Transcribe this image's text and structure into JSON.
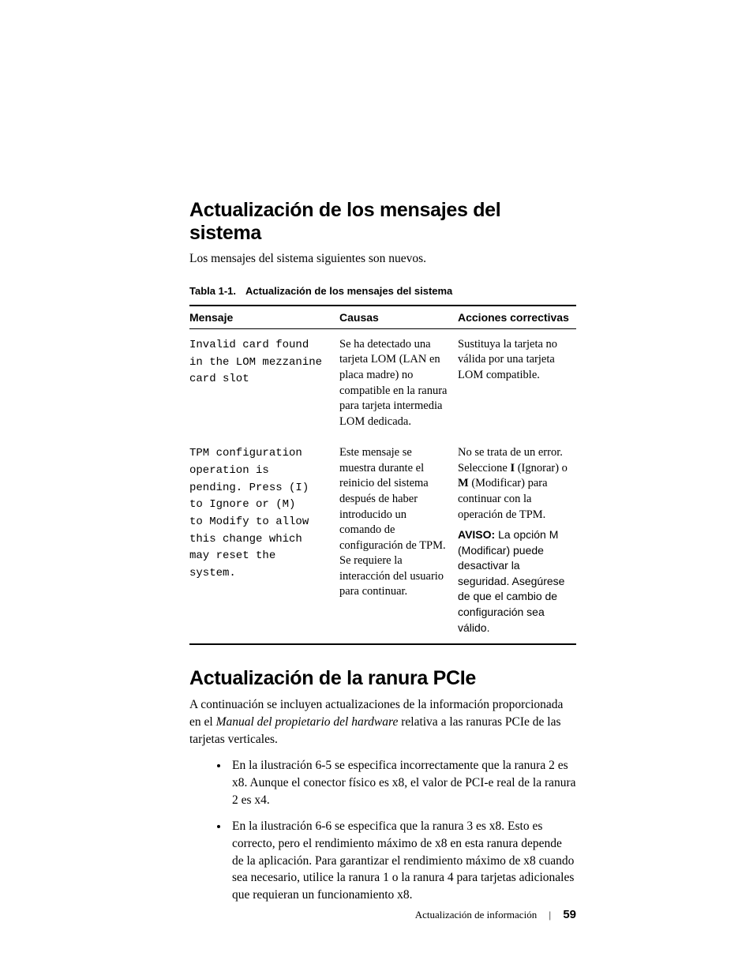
{
  "section1": {
    "heading": "Actualización de los mensajes del sistema",
    "intro": "Los mensajes del sistema siguientes son nuevos.",
    "table_caption_label": "Tabla 1-1.",
    "table_caption_text": "Actualización de los mensajes del sistema",
    "columns": {
      "c1": "Mensaje",
      "c2": "Causas",
      "c3": "Acciones correctivas"
    },
    "row1": {
      "message": "Invalid card found\nin the LOM mezzanine\ncard slot",
      "cause": "Se ha detectado una tarjeta LOM (LAN en placa madre) no compatible en la ranura para tarjeta intermedia LOM dedicada.",
      "action": "Sustituya la tarjeta no válida por una tarjeta LOM compatible."
    },
    "row2": {
      "message": "TPM configuration\noperation is\npending. Press (I)\nto Ignore or (M)\nto Modify to allow\nthis change which\nmay reset the\nsystem.",
      "cause": "Este mensaje se muestra durante el reinicio del sistema después de haber introducido un comando de configuración de TPM. Se requiere la interacción del usuario para continuar.",
      "action_p1_a": "No se trata de un error. Seleccione ",
      "action_p1_I": "I",
      "action_p1_b": " (Ignorar) o ",
      "action_p1_M": "M",
      "action_p1_c": " (Modificar) para continuar con la operación de TPM.",
      "aviso_label": "AVISO:",
      "aviso_text": " La opción M (Modificar) puede desactivar la seguridad. Asegúrese de que el cambio de configuración sea válido."
    }
  },
  "section2": {
    "heading": "Actualización de la ranura PCIe",
    "para_a": "A continuación se incluyen actualizaciones de la información proporcionada en el ",
    "para_ital": "Manual del propietario del hardware",
    "para_b": " relativa a las ranuras PCIe de las tarjetas verticales.",
    "bullet1": "En la ilustración 6-5 se especifica incorrectamente que la ranura 2 es x8. Aunque el conector físico es x8, el valor de PCI-e real de la ranura 2 es x4.",
    "bullet2": "En la ilustración 6-6 se especifica que la ranura 3 es x8. Esto es correcto, pero el rendimiento máximo de x8 en esta ranura depende de la aplicación. Para garantizar el rendimiento máximo de x8 cuando sea necesario, utilice la ranura 1 o la ranura 4 para tarjetas adicionales que requieran un funcionamiento x8."
  },
  "footer": {
    "section_name": "Actualización de información",
    "page_no": "59"
  }
}
